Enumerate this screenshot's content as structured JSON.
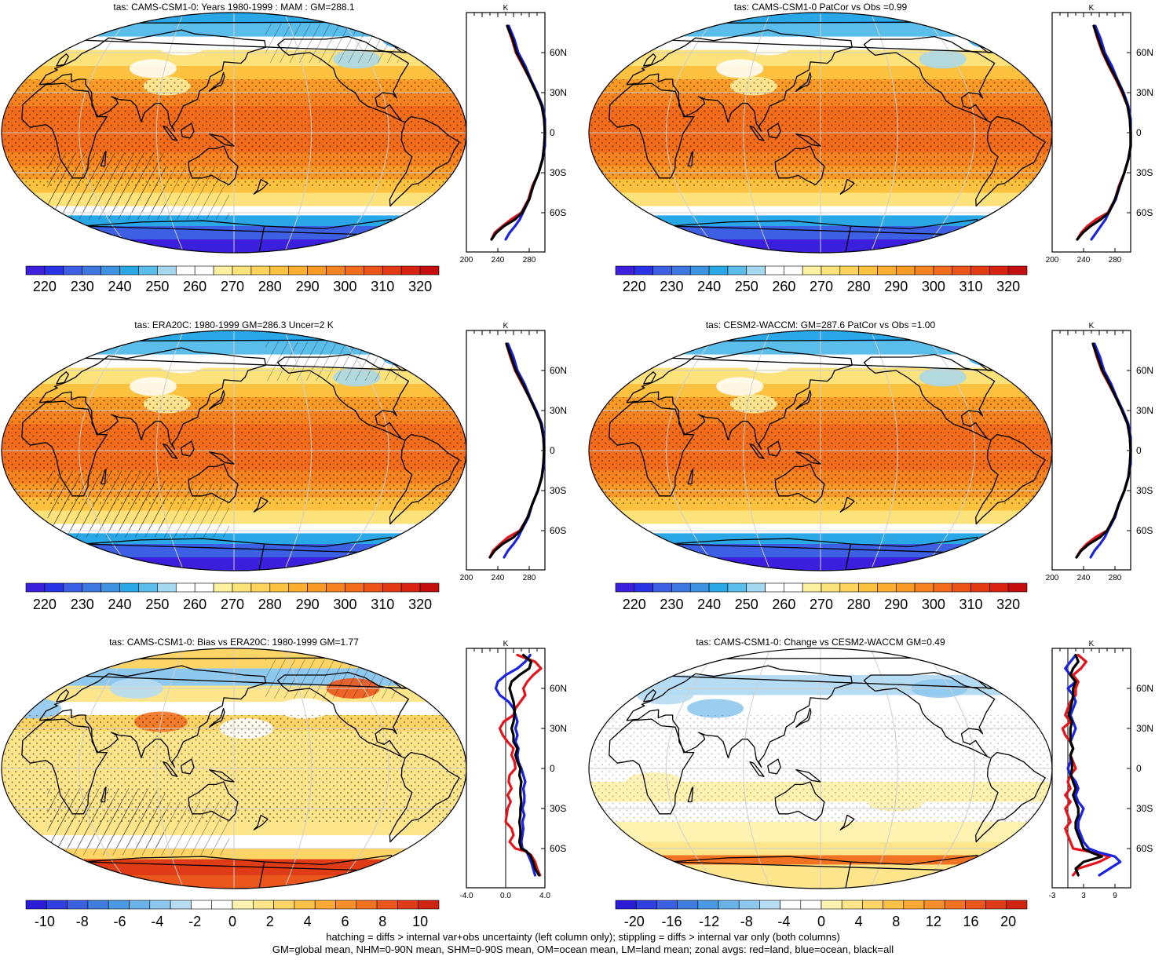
{
  "colors": {
    "abs_palette": [
      "#3b1fdc",
      "#2a32e6",
      "#3c5fe4",
      "#3e77e0",
      "#3d92e2",
      "#2aa7e6",
      "#5bbdea",
      "#a4d8f0",
      "#ffffff",
      "#ffffff",
      "#fdf0a0",
      "#fce27a",
      "#fdd35c",
      "#fcc23f",
      "#fbae2f",
      "#f99a26",
      "#f6831f",
      "#f26c1b",
      "#ec5317",
      "#e43a13",
      "#d92310",
      "#c40e0e"
    ],
    "diff_palette": [
      "#2a1bd6",
      "#2f3fe0",
      "#3b61e0",
      "#3f7ddf",
      "#4a9ae3",
      "#69b3e8",
      "#8fc8ee",
      "#b6dcf3",
      "#ffffff",
      "#ffffff",
      "#fdf2b0",
      "#fce58a",
      "#fcd566",
      "#fbc047",
      "#faa937",
      "#f68e2c",
      "#f27223",
      "#ea561c",
      "#df3b16",
      "#cf2412"
    ],
    "land_line": "#e8121a",
    "ocean_line": "#1a22e6",
    "all_line": "#000000",
    "map_base": "#f8b94a"
  },
  "footer": {
    "line1": "hatching = diffs > internal var+obs uncertainty (left column only); stippling = diffs > internal var only (both columns)",
    "line2": "GM=global mean, NHM=0-90N mean, SHM=0-90S mean, OM=ocean mean, LM=land mean; zonal avgs: red=land, blue=ocean, black=all"
  },
  "chart_data": [
    {
      "id": "p1",
      "type": "heatmap",
      "title": "tas: CAMS-CSM1-0: Years 1980-1999 : MAM : GM=288.1",
      "colorbar_labels": [
        "220",
        "230",
        "240",
        "250",
        "260",
        "270",
        "280",
        "290",
        "300",
        "310",
        "320"
      ],
      "profile": {
        "unit": "K",
        "xlim": [
          200,
          300
        ],
        "xticks": [
          "200",
          "240",
          "280"
        ],
        "yticks": [
          "60N",
          "30N",
          "0",
          "30S",
          "60S"
        ],
        "lat": [
          80,
          70,
          60,
          50,
          40,
          30,
          20,
          10,
          0,
          -10,
          -20,
          -30,
          -40,
          -50,
          -60,
          -65,
          -70,
          -75,
          -80
        ],
        "land": [
          252,
          258,
          263,
          272,
          281,
          289,
          296,
          299,
          300,
          299,
          297,
          292,
          284,
          279,
          270,
          257,
          246,
          236,
          232
        ],
        "ocean": [
          254,
          261,
          266,
          275,
          282,
          290,
          297,
          300,
          300,
          300,
          297,
          292,
          285,
          280,
          272,
          268,
          262,
          255,
          250
        ],
        "all": [
          252,
          259,
          264,
          273,
          281,
          289,
          296,
          299,
          300,
          299,
          297,
          292,
          285,
          280,
          271,
          262,
          248,
          238,
          232
        ]
      }
    },
    {
      "id": "p2",
      "type": "heatmap",
      "title": "tas: CAMS-CSM1-0 PatCor vs Obs =0.99",
      "colorbar_labels": [
        "220",
        "230",
        "240",
        "250",
        "260",
        "270",
        "280",
        "290",
        "300",
        "310",
        "320"
      ],
      "profile": {
        "unit": "K",
        "xlim": [
          200,
          300
        ],
        "xticks": [
          "200",
          "240",
          "280"
        ],
        "yticks": [
          "60N",
          "30N",
          "0",
          "30S",
          "60S"
        ],
        "lat": [
          80,
          70,
          60,
          50,
          40,
          30,
          20,
          10,
          0,
          -10,
          -20,
          -30,
          -40,
          -50,
          -60,
          -65,
          -70,
          -75,
          -80
        ],
        "land": [
          253,
          258,
          264,
          272,
          281,
          289,
          296,
          299,
          300,
          300,
          297,
          292,
          285,
          280,
          271,
          256,
          245,
          237,
          232
        ],
        "ocean": [
          255,
          262,
          267,
          276,
          283,
          291,
          297,
          300,
          300,
          300,
          297,
          292,
          286,
          281,
          272,
          268,
          262,
          256,
          250
        ],
        "all": [
          253,
          259,
          265,
          273,
          282,
          290,
          296,
          299,
          300,
          300,
          297,
          292,
          286,
          280,
          272,
          262,
          249,
          239,
          232
        ]
      }
    },
    {
      "id": "p3",
      "type": "heatmap",
      "title": "tas: ERA20C: 1980-1999 GM=286.3 Uncer=2 K",
      "colorbar_labels": [
        "220",
        "230",
        "240",
        "250",
        "260",
        "270",
        "280",
        "290",
        "300",
        "310",
        "320"
      ],
      "profile": {
        "unit": "K",
        "xlim": [
          200,
          300
        ],
        "xticks": [
          "200",
          "240",
          "280"
        ],
        "yticks": [
          "60N",
          "30N",
          "0",
          "30S",
          "60S"
        ],
        "lat": [
          80,
          70,
          60,
          50,
          40,
          30,
          20,
          10,
          0,
          -10,
          -20,
          -30,
          -40,
          -50,
          -60,
          -65,
          -70,
          -75,
          -80
        ],
        "land": [
          251,
          256,
          262,
          271,
          280,
          288,
          295,
          298,
          299,
          298,
          296,
          291,
          284,
          278,
          268,
          253,
          243,
          234,
          230
        ],
        "ocean": [
          253,
          260,
          265,
          274,
          281,
          289,
          296,
          299,
          299,
          299,
          296,
          291,
          284,
          279,
          270,
          266,
          260,
          253,
          248
        ],
        "all": [
          251,
          257,
          263,
          272,
          280,
          288,
          295,
          298,
          299,
          298,
          296,
          291,
          284,
          278,
          269,
          260,
          246,
          236,
          230
        ]
      }
    },
    {
      "id": "p4",
      "type": "heatmap",
      "title": "tas: CESM2-WACCM: GM=287.6 PatCor vs Obs =1.00",
      "colorbar_labels": [
        "220",
        "230",
        "240",
        "250",
        "260",
        "270",
        "280",
        "290",
        "300",
        "310",
        "320"
      ],
      "profile": {
        "unit": "K",
        "xlim": [
          200,
          300
        ],
        "xticks": [
          "200",
          "240",
          "280"
        ],
        "yticks": [
          "60N",
          "30N",
          "0",
          "30S",
          "60S"
        ],
        "lat": [
          80,
          70,
          60,
          50,
          40,
          30,
          20,
          10,
          0,
          -10,
          -20,
          -30,
          -40,
          -50,
          -60,
          -65,
          -70,
          -75,
          -80
        ],
        "land": [
          252,
          257,
          263,
          272,
          281,
          289,
          296,
          299,
          300,
          299,
          297,
          292,
          285,
          279,
          270,
          255,
          244,
          236,
          231
        ],
        "ocean": [
          254,
          261,
          266,
          275,
          282,
          290,
          297,
          300,
          300,
          300,
          297,
          292,
          285,
          280,
          271,
          267,
          261,
          254,
          249
        ],
        "all": [
          252,
          258,
          264,
          273,
          281,
          289,
          296,
          299,
          300,
          299,
          297,
          292,
          285,
          279,
          270,
          261,
          247,
          237,
          231
        ]
      }
    },
    {
      "id": "p5",
      "type": "heatmap",
      "title": "tas: CAMS-CSM1-0: Bias vs ERA20C: 1980-1999 GM=1.77",
      "colorbar_labels": [
        "-10",
        "-8",
        "-6",
        "-4",
        "-2",
        "0",
        "2",
        "4",
        "6",
        "8",
        "10"
      ],
      "profile": {
        "unit": "K",
        "xlim": [
          -4,
          4
        ],
        "xticks": [
          "-4.0",
          "0.0",
          "4.0"
        ],
        "yticks": [
          "60N",
          "30N",
          "0",
          "30S",
          "60S"
        ],
        "lat": [
          85,
          80,
          75,
          70,
          65,
          60,
          55,
          50,
          45,
          40,
          35,
          30,
          25,
          20,
          15,
          10,
          5,
          0,
          -5,
          -10,
          -15,
          -20,
          -25,
          -30,
          -35,
          -40,
          -45,
          -50,
          -55,
          -60,
          -62,
          -65,
          -70,
          -75,
          -80
        ],
        "land": [
          1.2,
          3.0,
          3.6,
          2.8,
          2.2,
          1.8,
          2.0,
          1.5,
          1.0,
          0.8,
          -0.2,
          -0.6,
          -0.3,
          0.2,
          0.8,
          0.6,
          0.9,
          1.0,
          0.4,
          0.3,
          0.6,
          0.2,
          0.5,
          0.2,
          0.1,
          0.0,
          0.6,
          0.8,
          0.4,
          1.0,
          2.0,
          2.6,
          3.0,
          3.2,
          3.5
        ],
        "ocean": [
          2.5,
          2.0,
          1.2,
          0.0,
          -0.8,
          -1.0,
          -0.6,
          0.3,
          0.8,
          1.0,
          1.2,
          1.0,
          1.2,
          1.0,
          1.3,
          1.2,
          1.3,
          1.6,
          1.8,
          2.0,
          1.8,
          1.9,
          1.9,
          1.7,
          1.9,
          1.7,
          1.8,
          1.7,
          1.6,
          1.7,
          2.1,
          2.3,
          2.6,
          2.8,
          3.0
        ],
        "all": [
          1.8,
          2.6,
          2.4,
          1.4,
          0.6,
          0.4,
          0.6,
          0.8,
          0.9,
          0.9,
          0.8,
          0.6,
          0.8,
          0.8,
          1.2,
          1.0,
          1.2,
          1.5,
          1.4,
          1.6,
          1.5,
          1.5,
          1.6,
          1.5,
          1.5,
          1.4,
          1.5,
          1.5,
          1.4,
          1.6,
          2.1,
          2.5,
          2.8,
          3.0,
          3.4
        ]
      }
    },
    {
      "id": "p6",
      "type": "heatmap",
      "title": "tas: CAMS-CSM1-0: Change vs CESM2-WACCM GM=0.49",
      "colorbar_labels": [
        "-20",
        "-16",
        "-12",
        "-8",
        "-4",
        "0",
        "4",
        "8",
        "12",
        "16",
        "20"
      ],
      "profile": {
        "unit": "K",
        "xlim": [
          -3,
          12
        ],
        "xticks": [
          "-3",
          "3",
          "9"
        ],
        "yticks": [
          "60N",
          "30N",
          "0",
          "30S",
          "60S"
        ],
        "lat": [
          85,
          80,
          75,
          70,
          65,
          60,
          55,
          50,
          45,
          40,
          35,
          30,
          25,
          20,
          15,
          10,
          5,
          0,
          -5,
          -10,
          -15,
          -20,
          -25,
          -30,
          -35,
          -40,
          -45,
          -50,
          -55,
          -60,
          -63,
          -66,
          -70,
          -75,
          -80
        ],
        "land": [
          2.0,
          3.5,
          2.5,
          1.0,
          2.0,
          1.5,
          1.5,
          0.5,
          0.0,
          -0.5,
          0.5,
          -1.0,
          -0.5,
          0.5,
          1.0,
          0.5,
          1.0,
          1.5,
          0.5,
          0.0,
          0.5,
          -0.5,
          0.5,
          -0.5,
          0.0,
          0.5,
          -0.5,
          0.0,
          0.5,
          1.0,
          5.0,
          8.0,
          6.0,
          2.0,
          1.0
        ],
        "ocean": [
          1.5,
          0.5,
          -0.5,
          0.5,
          1.5,
          0.0,
          1.0,
          1.5,
          1.0,
          0.5,
          1.0,
          1.5,
          1.0,
          0.5,
          1.0,
          0.5,
          0.5,
          0.0,
          0.5,
          1.5,
          2.0,
          1.5,
          2.0,
          3.0,
          2.5,
          2.0,
          2.0,
          2.5,
          3.0,
          4.0,
          6.0,
          9.0,
          10.0,
          8.0,
          6.0
        ],
        "all": [
          1.5,
          2.0,
          1.0,
          0.5,
          1.5,
          1.0,
          1.0,
          0.8,
          0.5,
          0.2,
          0.8,
          0.5,
          0.5,
          0.5,
          1.0,
          0.5,
          0.8,
          0.8,
          0.6,
          1.0,
          1.5,
          1.0,
          1.5,
          2.0,
          2.0,
          1.5,
          1.5,
          2.0,
          2.5,
          3.0,
          4.5,
          6.5,
          3.0,
          1.5,
          2.0
        ]
      }
    }
  ]
}
